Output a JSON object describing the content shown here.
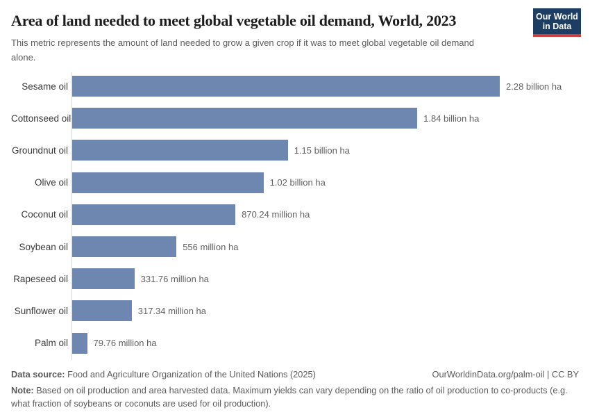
{
  "logo": {
    "line1": "Our World",
    "line2": "in Data",
    "bg_color": "#1d3d63",
    "accent_color": "#cf3e3e"
  },
  "header": {
    "title": "Area of land needed to meet global vegetable oil demand, World, 2023",
    "subtitle": "This metric represents the amount of land needed to grow a given crop if it was to meet global vegetable oil demand alone."
  },
  "chart_data": {
    "type": "bar",
    "orientation": "horizontal",
    "title": "Area of land needed to meet global vegetable oil demand, World, 2023",
    "unit": "hectares (ha)",
    "categories": [
      "Sesame oil",
      "Cottonseed oil",
      "Groundnut oil",
      "Olive oil",
      "Coconut oil",
      "Soybean oil",
      "Rapeseed oil",
      "Sunflower oil",
      "Palm oil"
    ],
    "values_billion_ha": [
      2.28,
      1.84,
      1.15,
      1.02,
      0.87024,
      0.556,
      0.33176,
      0.31734,
      0.07976
    ],
    "value_labels": [
      "2.28 billion ha",
      "1.84 billion ha",
      "1.15 billion ha",
      "1.02 billion ha",
      "870.24 million ha",
      "556 million ha",
      "331.76 million ha",
      "317.34 million ha",
      "79.76 million ha"
    ],
    "bar_color": "#6d87b1",
    "axis_color": "#d4d4d4",
    "xlim_billion_ha": [
      0,
      2.28
    ],
    "grid": false,
    "legend": false
  },
  "footer": {
    "source_label": "Data source:",
    "source_text": "Food and Agriculture Organization of the United Nations (2025)",
    "link_text": "OurWorldinData.org/palm-oil | CC BY",
    "note_label": "Note:",
    "note_text": "Based on oil production and area harvested data. Maximum yields can vary depending on the ratio of oil production to co-products (e.g. what fraction of soybeans or coconuts are used for oil production)."
  }
}
